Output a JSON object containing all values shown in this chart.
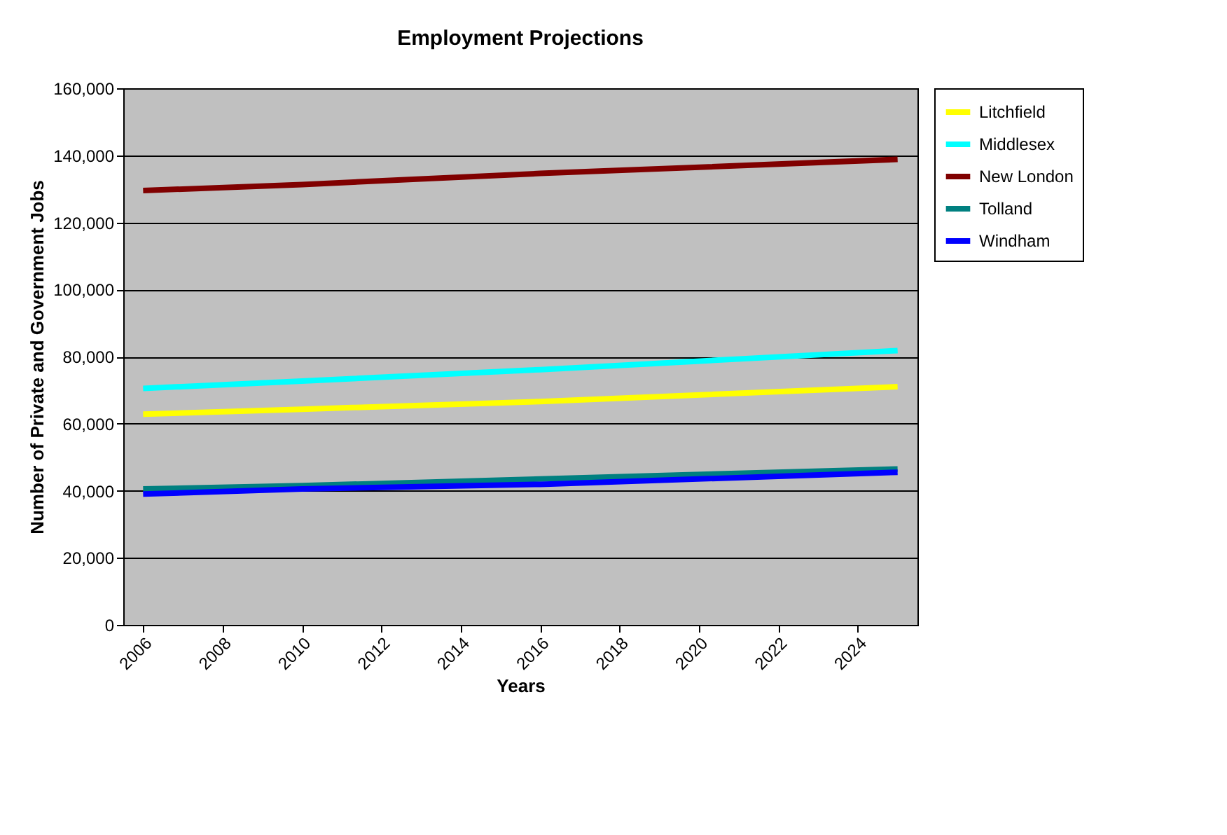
{
  "chart_data": {
    "type": "line",
    "title": "Employment Projections",
    "xlabel": "Years",
    "ylabel": "Number of Private and Government Jobs",
    "x": [
      2006,
      2010,
      2016,
      2025
    ],
    "xlim": [
      2005.5,
      2025.5
    ],
    "xticks": [
      2006,
      2008,
      2010,
      2012,
      2014,
      2016,
      2018,
      2020,
      2022,
      2024
    ],
    "ylim": [
      0,
      160000
    ],
    "yticks": [
      0,
      {
        "value": 20000,
        "label": "20,000"
      },
      {
        "value": 40000,
        "label": "40,000"
      },
      {
        "value": 60000,
        "label": "60,000"
      },
      {
        "value": 80000,
        "label": "80,000"
      },
      {
        "value": 100000,
        "label": "100,000"
      },
      {
        "value": 120000,
        "label": "120,000"
      },
      {
        "value": 140000,
        "label": "140,000"
      },
      {
        "value": 160000,
        "label": "160,000"
      }
    ],
    "grid": "y",
    "legend": "right",
    "marker": "none",
    "line_style": "solid",
    "series": [
      {
        "name": "Litchfield",
        "color": "#ffff00",
        "values": [
          62800,
          64300,
          66600,
          71000
        ]
      },
      {
        "name": "Middlesex",
        "color": "#00ffff",
        "values": [
          70500,
          72700,
          76100,
          81800
        ]
      },
      {
        "name": "New London",
        "color": "#800000",
        "values": [
          129500,
          131300,
          134600,
          138800
        ]
      },
      {
        "name": "Tolland",
        "color": "#008080",
        "values": [
          40500,
          41500,
          43500,
          46500
        ]
      },
      {
        "name": "Windham",
        "color": "#0000ff",
        "values": [
          39000,
          40500,
          41900,
          45500
        ]
      }
    ]
  }
}
